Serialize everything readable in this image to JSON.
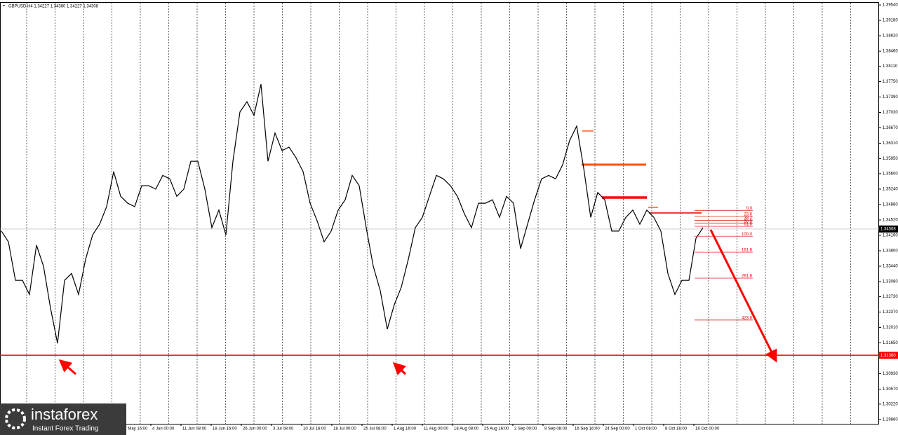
{
  "chart_data": {
    "type": "line",
    "header": "GBPUSD,H4 1.34227 1.34380 1.34227 1.34308",
    "series": [
      {
        "name": "GBPUSD",
        "color": "#000000",
        "values": [
          1.3426,
          1.3401,
          1.3311,
          1.3311,
          1.3278,
          1.3393,
          1.3344,
          1.3246,
          1.3164,
          1.3311,
          1.3327,
          1.3278,
          1.336,
          1.3417,
          1.3442,
          1.3483,
          1.3565,
          1.3507,
          1.3491,
          1.3483,
          1.3532,
          1.3532,
          1.3524,
          1.3556,
          1.3548,
          1.3507,
          1.3524,
          1.3589,
          1.3589,
          1.3524,
          1.3434,
          1.3475,
          1.3417,
          1.3589,
          1.3704,
          1.3728,
          1.3696,
          1.3769,
          1.3589,
          1.3655,
          1.3614,
          1.3622,
          1.3597,
          1.3565,
          1.3491,
          1.345,
          1.3401,
          1.3426,
          1.3475,
          1.3499,
          1.3556,
          1.3532,
          1.3434,
          1.3344,
          1.3287,
          1.3197,
          1.3254,
          1.3295,
          1.336,
          1.3434,
          1.3458,
          1.3507,
          1.3556,
          1.3548,
          1.3532,
          1.3507,
          1.3466,
          1.3434,
          1.3491,
          1.3491,
          1.3499,
          1.3458,
          1.3507,
          1.3491,
          1.3385,
          1.3442,
          1.3499,
          1.3548,
          1.3556,
          1.3548,
          1.3581,
          1.3638,
          1.3671,
          1.3573,
          1.3458,
          1.3516,
          1.3499,
          1.3426,
          1.3426,
          1.3458,
          1.3475,
          1.3442,
          1.3475,
          1.3458,
          1.3426,
          1.3327,
          1.3278,
          1.3311,
          1.3311,
          1.3409,
          1.3434
        ]
      }
    ],
    "ylim": [
      1.2976,
      1.3959
    ],
    "yticks": [
      {
        "value": 1.3954,
        "label": "1.39540"
      },
      {
        "value": 1.3918,
        "label": "1.39180"
      },
      {
        "value": 1.3882,
        "label": "1.38820"
      },
      {
        "value": 1.3846,
        "label": "1.38460"
      },
      {
        "value": 1.3811,
        "label": "1.38110"
      },
      {
        "value": 1.3775,
        "label": "1.37750"
      },
      {
        "value": 1.3739,
        "label": "1.37390"
      },
      {
        "value": 1.3703,
        "label": "1.37030"
      },
      {
        "value": 1.3667,
        "label": "1.36670"
      },
      {
        "value": 1.3631,
        "label": "1.36310"
      },
      {
        "value": 1.3595,
        "label": "1.35950"
      },
      {
        "value": 1.356,
        "label": "1.35600"
      },
      {
        "value": 1.3524,
        "label": "1.35240"
      },
      {
        "value": 1.3488,
        "label": "1.34880"
      },
      {
        "value": 1.3452,
        "label": "1.34520"
      },
      {
        "value": 1.3416,
        "label": "1.34160"
      },
      {
        "value": 1.338,
        "label": "1.33800"
      },
      {
        "value": 1.3344,
        "label": "1.33440"
      },
      {
        "value": 1.3308,
        "label": "1.33080"
      },
      {
        "value": 1.3273,
        "label": "1.32730"
      },
      {
        "value": 1.3237,
        "label": "1.32370"
      },
      {
        "value": 1.3201,
        "label": "1.32010"
      },
      {
        "value": 1.3165,
        "label": "1.31650"
      },
      {
        "value": 1.3093,
        "label": "1.30930"
      },
      {
        "value": 1.3057,
        "label": "1.30570"
      },
      {
        "value": 1.3022,
        "label": "1.30220"
      },
      {
        "value": 1.2986,
        "label": "1.29860"
      }
    ],
    "xlabels": [
      "27 May 16:00",
      "4 Jun 00:00",
      "11 Jun 08:00",
      "18 Jun 16:00",
      "26 Jun 00:00",
      "3 Jul 08:00",
      "10 Jul 16:00",
      "18 Jul 00:00",
      "25 Jul 08:00",
      "1 Aug 16:00",
      "11 Aug 00:00",
      "18 Aug 08:00",
      "25 Aug 16:00",
      "2 Sep 00:00",
      "9 Sep 08:00",
      "16 Sep 16:00",
      "24 Sep 00:00",
      "1 Oct 08:00",
      "8 Oct 16:00",
      "16 Oct 00:00"
    ],
    "current_price": 1.34308,
    "support": {
      "value": 1.3136,
      "label": "1.31360"
    },
    "fibonacci": {
      "high": 1.34745,
      "low": 1.3414,
      "levels": [
        {
          "value": 0,
          "label": "0.0"
        },
        23.6,
        38.2,
        {
          "value": 50,
          "label": "50.0"
        },
        61.8,
        {
          "value": 100,
          "label": "100.0"
        },
        161.8,
        261.8,
        423.6
      ]
    }
  },
  "logo": {
    "name": "instaforex",
    "tagline": "Instant Forex Trading"
  }
}
